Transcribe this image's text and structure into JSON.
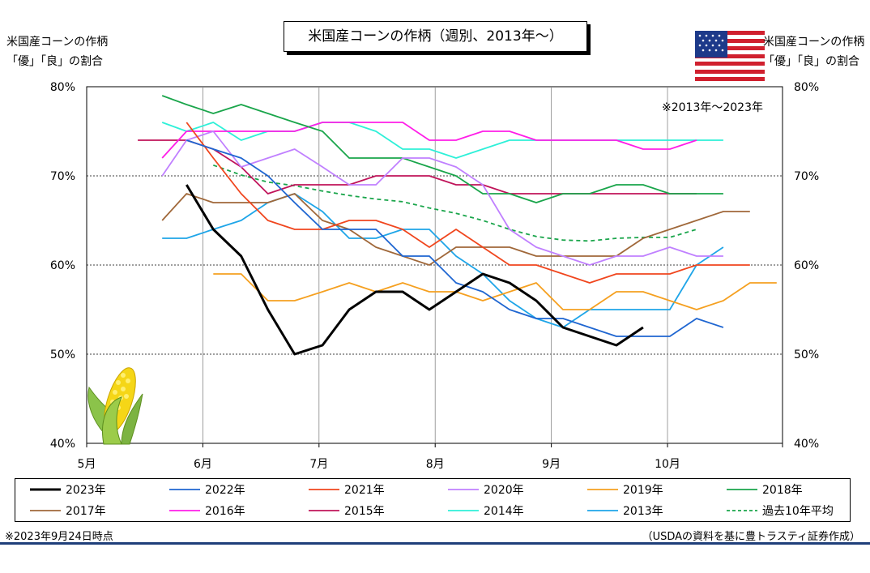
{
  "chart_data": {
    "type": "line",
    "title": "米国産コーンの作柄（週別、2013年～）",
    "ylabel_left": [
      "米国産コーンの作柄",
      "「優」「良」の割合"
    ],
    "ylabel_right": [
      "米国産コーンの作柄",
      "「優」「良」の割合"
    ],
    "annotation": "※2013年～2023年",
    "xlim": [
      5,
      10.99
    ],
    "x_ticks": [
      {
        "x": 5,
        "label": "5月"
      },
      {
        "x": 6,
        "label": "6月"
      },
      {
        "x": 7,
        "label": "7月"
      },
      {
        "x": 8,
        "label": "8月"
      },
      {
        "x": 9,
        "label": "9月"
      },
      {
        "x": 10,
        "label": "10月"
      }
    ],
    "ylim": [
      40,
      80
    ],
    "y_ticks": [
      {
        "y": 40,
        "label": "40%"
      },
      {
        "y": 50,
        "label": "50%"
      },
      {
        "y": 60,
        "label": "60%"
      },
      {
        "y": 70,
        "label": "70%"
      },
      {
        "y": 80,
        "label": "80%"
      }
    ],
    "series": [
      {
        "name": "2023年",
        "color": "#000000",
        "width": 3,
        "dash": "",
        "points": [
          [
            5.86,
            69
          ],
          [
            6.09,
            64
          ],
          [
            6.33,
            61
          ],
          [
            6.56,
            55
          ],
          [
            6.79,
            50
          ],
          [
            7.03,
            51
          ],
          [
            7.26,
            55
          ],
          [
            7.49,
            57
          ],
          [
            7.72,
            57
          ],
          [
            7.95,
            55
          ],
          [
            8.18,
            57
          ],
          [
            8.41,
            59
          ],
          [
            8.64,
            58
          ],
          [
            8.87,
            56
          ],
          [
            9.1,
            53
          ],
          [
            9.33,
            52
          ],
          [
            9.56,
            51
          ],
          [
            9.79,
            53
          ]
        ]
      },
      {
        "name": "2022年",
        "color": "#1f66d1",
        "width": 1.8,
        "dash": "",
        "points": [
          [
            5.86,
            74
          ],
          [
            6.09,
            73
          ],
          [
            6.33,
            72
          ],
          [
            6.56,
            70
          ],
          [
            6.79,
            67
          ],
          [
            7.03,
            64
          ],
          [
            7.26,
            64
          ],
          [
            7.49,
            64
          ],
          [
            7.72,
            61
          ],
          [
            7.95,
            61
          ],
          [
            8.18,
            58
          ],
          [
            8.41,
            57
          ],
          [
            8.64,
            55
          ],
          [
            8.87,
            54
          ],
          [
            9.1,
            54
          ],
          [
            9.33,
            53
          ],
          [
            9.56,
            52
          ],
          [
            9.79,
            52
          ],
          [
            10.02,
            52
          ],
          [
            10.25,
            54
          ],
          [
            10.48,
            53
          ]
        ]
      },
      {
        "name": "2021年",
        "color": "#f0461e",
        "width": 1.8,
        "dash": "",
        "points": [
          [
            5.86,
            76
          ],
          [
            6.09,
            72
          ],
          [
            6.33,
            68
          ],
          [
            6.56,
            65
          ],
          [
            6.79,
            64
          ],
          [
            7.03,
            64
          ],
          [
            7.26,
            65
          ],
          [
            7.49,
            65
          ],
          [
            7.72,
            64
          ],
          [
            7.95,
            62
          ],
          [
            8.18,
            64
          ],
          [
            8.41,
            62
          ],
          [
            8.64,
            60
          ],
          [
            8.87,
            60
          ],
          [
            9.1,
            59
          ],
          [
            9.33,
            58
          ],
          [
            9.56,
            59
          ],
          [
            9.79,
            59
          ],
          [
            10.02,
            59
          ],
          [
            10.25,
            60
          ],
          [
            10.48,
            60
          ],
          [
            10.71,
            60
          ]
        ]
      },
      {
        "name": "2020年",
        "color": "#c080ff",
        "width": 1.8,
        "dash": "",
        "points": [
          [
            5.65,
            70
          ],
          [
            5.86,
            74
          ],
          [
            6.09,
            75
          ],
          [
            6.33,
            71
          ],
          [
            6.56,
            72
          ],
          [
            6.79,
            73
          ],
          [
            7.03,
            71
          ],
          [
            7.26,
            69
          ],
          [
            7.49,
            69
          ],
          [
            7.72,
            72
          ],
          [
            7.95,
            72
          ],
          [
            8.18,
            71
          ],
          [
            8.41,
            69
          ],
          [
            8.64,
            64
          ],
          [
            8.87,
            62
          ],
          [
            9.1,
            61
          ],
          [
            9.33,
            60
          ],
          [
            9.56,
            61
          ],
          [
            9.79,
            61
          ],
          [
            10.02,
            62
          ],
          [
            10.25,
            61
          ],
          [
            10.48,
            61
          ]
        ]
      },
      {
        "name": "2019年",
        "color": "#f5a020",
        "width": 1.8,
        "dash": "",
        "points": [
          [
            6.09,
            59
          ],
          [
            6.33,
            59
          ],
          [
            6.56,
            56
          ],
          [
            6.79,
            56
          ],
          [
            7.03,
            57
          ],
          [
            7.26,
            58
          ],
          [
            7.49,
            57
          ],
          [
            7.72,
            58
          ],
          [
            7.95,
            57
          ],
          [
            8.18,
            57
          ],
          [
            8.41,
            56
          ],
          [
            8.64,
            57
          ],
          [
            8.87,
            58
          ],
          [
            9.1,
            55
          ],
          [
            9.33,
            55
          ],
          [
            9.56,
            57
          ],
          [
            9.79,
            57
          ],
          [
            10.02,
            56
          ],
          [
            10.25,
            55
          ],
          [
            10.48,
            56
          ],
          [
            10.71,
            58
          ],
          [
            10.94,
            58
          ]
        ]
      },
      {
        "name": "2018年",
        "color": "#1aa54b",
        "width": 1.8,
        "dash": "",
        "points": [
          [
            5.65,
            79
          ],
          [
            5.86,
            78
          ],
          [
            6.09,
            77
          ],
          [
            6.33,
            78
          ],
          [
            6.56,
            77
          ],
          [
            6.79,
            76
          ],
          [
            7.03,
            75
          ],
          [
            7.26,
            72
          ],
          [
            7.49,
            72
          ],
          [
            7.72,
            72
          ],
          [
            7.95,
            71
          ],
          [
            8.18,
            70
          ],
          [
            8.41,
            68
          ],
          [
            8.64,
            68
          ],
          [
            8.87,
            67
          ],
          [
            9.1,
            68
          ],
          [
            9.33,
            68
          ],
          [
            9.56,
            69
          ],
          [
            9.79,
            69
          ],
          [
            10.02,
            68
          ],
          [
            10.25,
            68
          ],
          [
            10.48,
            68
          ]
        ]
      },
      {
        "name": "2017年",
        "color": "#a0683a",
        "width": 1.8,
        "dash": "",
        "points": [
          [
            5.65,
            65
          ],
          [
            5.86,
            68
          ],
          [
            6.09,
            67
          ],
          [
            6.33,
            67
          ],
          [
            6.56,
            67
          ],
          [
            6.79,
            68
          ],
          [
            7.03,
            65
          ],
          [
            7.26,
            64
          ],
          [
            7.49,
            62
          ],
          [
            7.72,
            61
          ],
          [
            7.95,
            60
          ],
          [
            8.18,
            62
          ],
          [
            8.41,
            62
          ],
          [
            8.64,
            62
          ],
          [
            8.87,
            61
          ],
          [
            9.1,
            61
          ],
          [
            9.33,
            61
          ],
          [
            9.56,
            61
          ],
          [
            9.79,
            63
          ],
          [
            10.02,
            64
          ],
          [
            10.25,
            65
          ],
          [
            10.48,
            66
          ],
          [
            10.71,
            66
          ]
        ]
      },
      {
        "name": "2016年",
        "color": "#ff1ee8",
        "width": 1.8,
        "dash": "",
        "points": [
          [
            5.65,
            72
          ],
          [
            5.86,
            75
          ],
          [
            6.09,
            75
          ],
          [
            6.33,
            75
          ],
          [
            6.56,
            75
          ],
          [
            6.79,
            75
          ],
          [
            7.03,
            76
          ],
          [
            7.26,
            76
          ],
          [
            7.49,
            76
          ],
          [
            7.72,
            76
          ],
          [
            7.95,
            74
          ],
          [
            8.18,
            74
          ],
          [
            8.41,
            75
          ],
          [
            8.64,
            75
          ],
          [
            8.87,
            74
          ],
          [
            9.1,
            74
          ],
          [
            9.33,
            74
          ],
          [
            9.56,
            74
          ],
          [
            9.79,
            73
          ],
          [
            10.02,
            73
          ],
          [
            10.25,
            74
          ]
        ]
      },
      {
        "name": "2015年",
        "color": "#c0145a",
        "width": 1.8,
        "dash": "",
        "points": [
          [
            5.44,
            74
          ],
          [
            5.65,
            74
          ],
          [
            5.86,
            74
          ],
          [
            6.09,
            73
          ],
          [
            6.33,
            71
          ],
          [
            6.56,
            68
          ],
          [
            6.79,
            69
          ],
          [
            7.03,
            69
          ],
          [
            7.26,
            69
          ],
          [
            7.49,
            70
          ],
          [
            7.72,
            70
          ],
          [
            7.95,
            70
          ],
          [
            8.18,
            69
          ],
          [
            8.41,
            69
          ],
          [
            8.64,
            68
          ],
          [
            8.87,
            68
          ],
          [
            9.1,
            68
          ],
          [
            9.33,
            68
          ],
          [
            9.56,
            68
          ],
          [
            9.79,
            68
          ],
          [
            10.02,
            68
          ],
          [
            10.25,
            68
          ]
        ]
      },
      {
        "name": "2014年",
        "color": "#2ef0d8",
        "width": 1.8,
        "dash": "",
        "points": [
          [
            5.65,
            76
          ],
          [
            5.86,
            75
          ],
          [
            6.09,
            76
          ],
          [
            6.33,
            74
          ],
          [
            6.56,
            75
          ],
          [
            6.79,
            75
          ],
          [
            7.03,
            76
          ],
          [
            7.26,
            76
          ],
          [
            7.49,
            75
          ],
          [
            7.72,
            73
          ],
          [
            7.95,
            73
          ],
          [
            8.18,
            72
          ],
          [
            8.41,
            73
          ],
          [
            8.64,
            74
          ],
          [
            8.87,
            74
          ],
          [
            9.1,
            74
          ],
          [
            9.33,
            74
          ],
          [
            9.56,
            74
          ],
          [
            9.79,
            74
          ],
          [
            10.02,
            74
          ],
          [
            10.25,
            74
          ],
          [
            10.48,
            74
          ]
        ]
      },
      {
        "name": "2013年",
        "color": "#1ea5e8",
        "width": 1.8,
        "dash": "",
        "points": [
          [
            5.65,
            63
          ],
          [
            5.86,
            63
          ],
          [
            6.09,
            64
          ],
          [
            6.33,
            65
          ],
          [
            6.56,
            67
          ],
          [
            6.79,
            68
          ],
          [
            7.03,
            66
          ],
          [
            7.26,
            63
          ],
          [
            7.49,
            63
          ],
          [
            7.72,
            64
          ],
          [
            7.95,
            64
          ],
          [
            8.18,
            61
          ],
          [
            8.41,
            59
          ],
          [
            8.64,
            56
          ],
          [
            8.87,
            54
          ],
          [
            9.1,
            53
          ],
          [
            9.33,
            55
          ],
          [
            9.56,
            55
          ],
          [
            9.79,
            55
          ],
          [
            10.02,
            55
          ],
          [
            10.25,
            60
          ],
          [
            10.48,
            62
          ]
        ]
      },
      {
        "name": "過去10年平均",
        "color": "#1aa54b",
        "width": 1.8,
        "dash": "5,4",
        "points": [
          [
            6.09,
            71.2
          ],
          [
            6.33,
            70.1
          ],
          [
            6.56,
            69.3
          ],
          [
            6.79,
            68.9
          ],
          [
            7.03,
            68.3
          ],
          [
            7.26,
            67.8
          ],
          [
            7.49,
            67.4
          ],
          [
            7.72,
            67.1
          ],
          [
            7.95,
            66.4
          ],
          [
            8.18,
            65.8
          ],
          [
            8.41,
            65
          ],
          [
            8.64,
            64
          ],
          [
            8.87,
            63.2
          ],
          [
            9.1,
            62.8
          ],
          [
            9.33,
            62.7
          ],
          [
            9.56,
            63
          ],
          [
            9.79,
            63.1
          ],
          [
            10.02,
            63.1
          ],
          [
            10.25,
            64
          ]
        ]
      }
    ]
  },
  "notes": {
    "date": "※2023年9月24日時点",
    "source": "（USDAの資料を基に豊トラスティ証券作成）"
  },
  "icons": {
    "flag": "us-flag-icon",
    "corn": "corn-icon"
  }
}
